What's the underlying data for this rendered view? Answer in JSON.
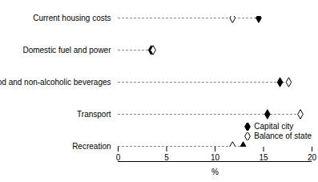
{
  "chart_data": {
    "type": "dot",
    "orientation": "horizontal",
    "legend": "lower right",
    "categories": [
      "Current housing costs",
      "Domestic fuel and power",
      "Food and non-alcoholic beverages",
      "Transport",
      "Recreation"
    ],
    "series": [
      {
        "name": "Capital city",
        "color": "#000000",
        "marker": "diamond",
        "values": [
          14.5,
          3.4,
          16.7,
          15.4,
          12.9
        ]
      },
      {
        "name": "Balance of state",
        "color": "#ffffff",
        "marker": "diamond",
        "values": [
          11.8,
          3.6,
          17.6,
          18.8,
          11.8
        ]
      }
    ],
    "xlim": [
      0,
      20
    ],
    "xticks": [
      0,
      5,
      10,
      15,
      20
    ],
    "xlabel": "%"
  }
}
